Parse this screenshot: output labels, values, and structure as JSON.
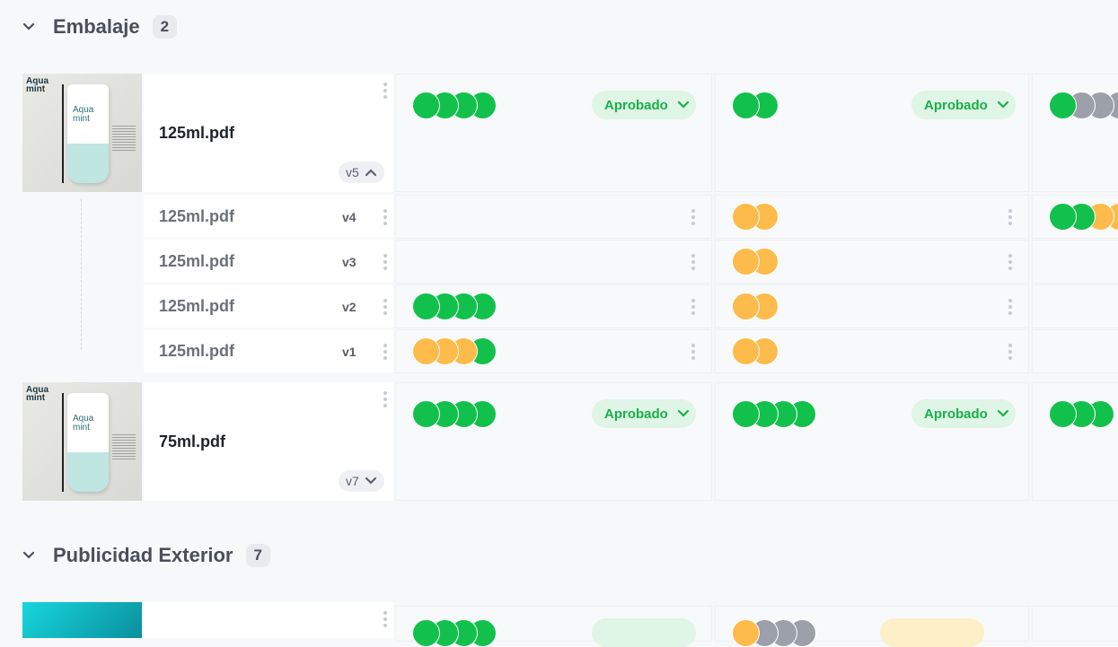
{
  "colors": {
    "g": "#12c14c",
    "o": "#fdbb4b",
    "x": "#9ca0ab",
    "approved_bg": "#dff5e5",
    "approved_fg": "#1aaf4a",
    "pending_bg": "#fdf0c8"
  },
  "sections": [
    {
      "title": "Embalaje",
      "count": "2"
    },
    {
      "title": "Publicidad Exterior",
      "count": "7"
    }
  ],
  "assets": [
    {
      "name": "125ml.pdf",
      "version": "v5",
      "expanded": true,
      "thumb_logo": "Aqua mint",
      "cols": [
        {
          "dots": [
            "g",
            "g",
            "g",
            "g"
          ],
          "status": "Aprobado"
        },
        {
          "dots": [
            "g",
            "g"
          ],
          "status": "Aprobado"
        },
        {
          "dots": [
            "g",
            "x",
            "x",
            "x"
          ]
        }
      ],
      "versions": [
        {
          "name": "125ml.pdf",
          "version": "v4",
          "cols": [
            [],
            [
              "o",
              "o"
            ],
            [
              "g",
              "g",
              "o",
              "o"
            ]
          ]
        },
        {
          "name": "125ml.pdf",
          "version": "v3",
          "cols": [
            [],
            [
              "o",
              "o"
            ],
            []
          ]
        },
        {
          "name": "125ml.pdf",
          "version": "v2",
          "cols": [
            [
              "g",
              "g",
              "g",
              "g"
            ],
            [
              "o",
              "o"
            ],
            []
          ]
        },
        {
          "name": "125ml.pdf",
          "version": "v1",
          "cols": [
            [
              "o",
              "o",
              "o",
              "g"
            ],
            [
              "o",
              "o"
            ],
            []
          ]
        }
      ]
    },
    {
      "name": "75ml.pdf",
      "version": "v7",
      "expanded": false,
      "thumb_logo": "Aqua mint",
      "cols": [
        {
          "dots": [
            "g",
            "g",
            "g",
            "g"
          ],
          "status": "Aprobado"
        },
        {
          "dots": [
            "g",
            "g",
            "g",
            "g"
          ],
          "status": "Aprobado"
        },
        {
          "dots": [
            "g",
            "g",
            "g"
          ]
        }
      ]
    },
    {
      "cols": [
        {
          "dots": [
            "g",
            "g",
            "g",
            "g"
          ]
        },
        {
          "dots": [
            "o",
            "x",
            "x",
            "x"
          ]
        }
      ]
    }
  ]
}
